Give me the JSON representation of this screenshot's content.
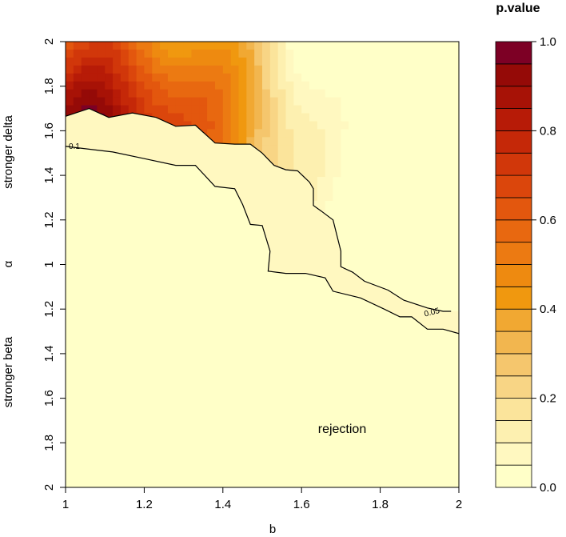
{
  "chart_data": {
    "type": "heatmap",
    "xlabel": "b",
    "ylabel": "α",
    "xlim": [
      1,
      2
    ],
    "y_ticks": [
      "2",
      "1.8",
      "1.6",
      "1.4",
      "1.2",
      "1",
      "1.2",
      "1.4",
      "1.6",
      "1.8",
      "2"
    ],
    "x_ticks": [
      "1",
      "1.2",
      "1.4",
      "1.6",
      "1.8",
      "2"
    ],
    "y_side_labels": {
      "top": "stronger delta",
      "bottom": "stronger beta"
    },
    "legend": {
      "title": "p.value",
      "ticks": [
        "1.0",
        "0.8",
        "0.6",
        "0.4",
        "0.2",
        "0.0"
      ],
      "levels": [
        0,
        0.05,
        0.1,
        0.15,
        0.2,
        0.25,
        0.3,
        0.35,
        0.4,
        0.45,
        0.5,
        0.55,
        0.6,
        0.65,
        0.7,
        0.75,
        0.8,
        0.85,
        0.9,
        0.95,
        1.0
      ],
      "colors": [
        "#FFFFC8",
        "#FFF8C0",
        "#FDF0B0",
        "#FBE49B",
        "#F8D585",
        "#F5C66D",
        "#F2B64F",
        "#F1A832",
        "#F0980F",
        "#EE8A10",
        "#EC7A12",
        "#E86810",
        "#E3570E",
        "#DB460C",
        "#D1370A",
        "#C52808",
        "#B71B07",
        "#A71206",
        "#950A07",
        "#7D0025"
      ]
    },
    "contours": [
      {
        "level": 0.1,
        "label": "0.1",
        "points": [
          [
            1.0,
            1.53
          ],
          [
            1.12,
            1.505
          ],
          [
            1.2,
            1.475
          ],
          [
            1.28,
            1.445
          ],
          [
            1.33,
            1.445
          ],
          [
            1.38,
            1.35
          ],
          [
            1.43,
            1.34
          ],
          [
            1.45,
            1.27
          ],
          [
            1.47,
            1.18
          ],
          [
            1.5,
            1.175
          ],
          [
            1.52,
            1.06
          ],
          [
            1.515,
            0.97
          ],
          [
            1.56,
            0.96
          ],
          [
            1.61,
            0.96
          ],
          [
            1.66,
            0.94
          ],
          [
            1.68,
            0.88
          ],
          [
            1.75,
            0.85
          ],
          [
            1.81,
            0.8
          ],
          [
            1.85,
            0.765
          ],
          [
            1.88,
            0.765
          ],
          [
            1.92,
            0.71
          ],
          [
            1.94,
            0.71
          ],
          [
            1.96,
            0.71
          ],
          [
            2.0,
            0.69
          ]
        ]
      },
      {
        "level": 0.05,
        "label": "0.05",
        "points": [
          [
            1.0,
            1.665
          ],
          [
            1.06,
            1.7
          ],
          [
            1.11,
            1.66
          ],
          [
            1.17,
            1.68
          ],
          [
            1.23,
            1.66
          ],
          [
            1.28,
            1.62
          ],
          [
            1.33,
            1.625
          ],
          [
            1.38,
            1.545
          ],
          [
            1.43,
            1.54
          ],
          [
            1.47,
            1.54
          ],
          [
            1.5,
            1.5
          ],
          [
            1.53,
            1.445
          ],
          [
            1.56,
            1.425
          ],
          [
            1.59,
            1.42
          ],
          [
            1.62,
            1.37
          ],
          [
            1.63,
            1.34
          ],
          [
            1.63,
            1.265
          ],
          [
            1.65,
            1.24
          ],
          [
            1.68,
            1.2
          ],
          [
            1.7,
            1.06
          ],
          [
            1.7,
            0.99
          ],
          [
            1.73,
            0.965
          ],
          [
            1.76,
            0.925
          ],
          [
            1.82,
            0.885
          ],
          [
            1.86,
            0.84
          ],
          [
            1.92,
            0.805
          ],
          [
            1.96,
            0.79
          ],
          [
            1.98,
            0.79
          ]
        ]
      }
    ],
    "annotation": "rejection"
  }
}
